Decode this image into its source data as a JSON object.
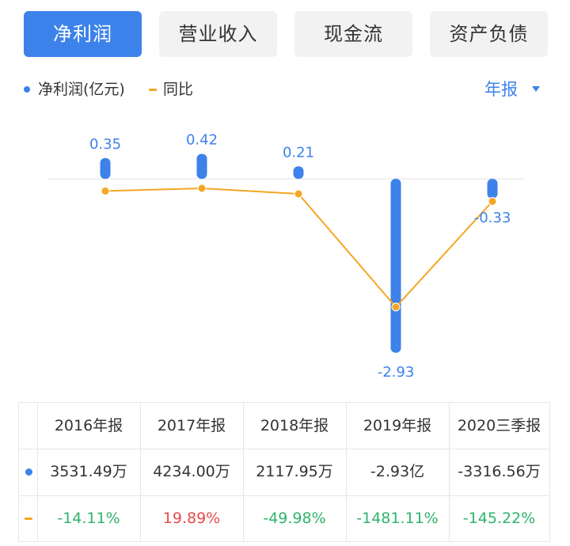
{
  "tabs": [
    {
      "label": "净利润",
      "active": true
    },
    {
      "label": "营业收入",
      "active": false
    },
    {
      "label": "现金流",
      "active": false
    },
    {
      "label": "资产负债",
      "active": false
    }
  ],
  "legend": {
    "net_profit": "净利润(亿元)",
    "yoy": "同比"
  },
  "period_select": "年报",
  "colors": {
    "bar": "#3d82ea",
    "line": "#f5a623",
    "positive": "#e84a4a",
    "negative": "#2fb36b",
    "label": "#3d82ea"
  },
  "chart_data": {
    "type": "bar",
    "categories": [
      "2016年报",
      "2017年报",
      "2018年报",
      "2019年报",
      "2020三季报"
    ],
    "series": [
      {
        "name": "净利润(亿元)",
        "type": "bar",
        "values": [
          0.35,
          0.42,
          0.21,
          -2.93,
          -0.33
        ],
        "labels": [
          "0.35",
          "0.42",
          "0.21",
          "-2.93",
          "-0.33"
        ]
      },
      {
        "name": "同比",
        "type": "line",
        "values": [
          -14.11,
          19.89,
          -49.98,
          -1481.11,
          -145.22
        ]
      }
    ]
  },
  "table": {
    "headers": [
      "2016年报",
      "2017年报",
      "2018年报",
      "2019年报",
      "2020三季报"
    ],
    "net_profit_row": [
      "3531.49万",
      "4234.00万",
      "2117.95万",
      "-2.93亿",
      "-3316.56万"
    ],
    "yoy_row": [
      "-14.11%",
      "19.89%",
      "-49.98%",
      "-1481.11%",
      "-145.22%"
    ]
  }
}
